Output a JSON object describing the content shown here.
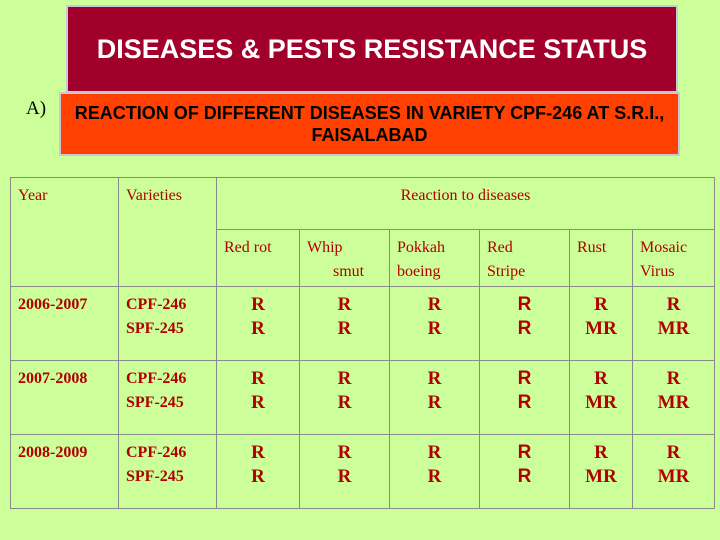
{
  "title": "DISEASES & PESTS RESISTANCE STATUS",
  "section_marker": "A)",
  "subtitle": "REACTION OF DIFFERENT DISEASES IN VARIETY CPF-246 AT S.R.I., FAISALABAD",
  "colors": {
    "background": "#ccff99",
    "title_box": "#a0002a",
    "subtitle_box": "#ff4000",
    "table_text": "#b00000"
  },
  "table": {
    "headers": {
      "year": "Year",
      "varieties": "Varieties",
      "reaction": "Reaction to diseases"
    },
    "diseases": [
      {
        "line1": "Red rot",
        "line2": ""
      },
      {
        "line1": "Whip",
        "line2": "smut"
      },
      {
        "line1": "Pokkah",
        "line2": "boeing"
      },
      {
        "line1": "Red",
        "line2": "Stripe"
      },
      {
        "line1": "Rust",
        "line2": ""
      },
      {
        "line1": "Mosaic",
        "line2": "Virus"
      }
    ],
    "rows": [
      {
        "year": "2006-2007",
        "varieties": [
          "CPF-246",
          "SPF-245"
        ],
        "reactions": [
          [
            "R",
            "R"
          ],
          [
            "R",
            "R"
          ],
          [
            "R",
            "R"
          ],
          [
            "R",
            "R"
          ],
          [
            "R",
            "MR"
          ],
          [
            "R",
            "MR"
          ]
        ]
      },
      {
        "year": "2007-2008",
        "varieties": [
          "CPF-246",
          "SPF-245"
        ],
        "reactions": [
          [
            "R",
            "R"
          ],
          [
            "R",
            "R"
          ],
          [
            "R",
            "R"
          ],
          [
            "R",
            "R"
          ],
          [
            "R",
            "MR"
          ],
          [
            "R",
            "MR"
          ]
        ]
      },
      {
        "year": "2008-2009",
        "varieties": [
          "CPF-246",
          "SPF-245"
        ],
        "reactions": [
          [
            "R",
            "R"
          ],
          [
            "R",
            "R"
          ],
          [
            "R",
            "R"
          ],
          [
            "R",
            "R"
          ],
          [
            "R",
            "MR"
          ],
          [
            "R",
            "MR"
          ]
        ]
      }
    ]
  }
}
